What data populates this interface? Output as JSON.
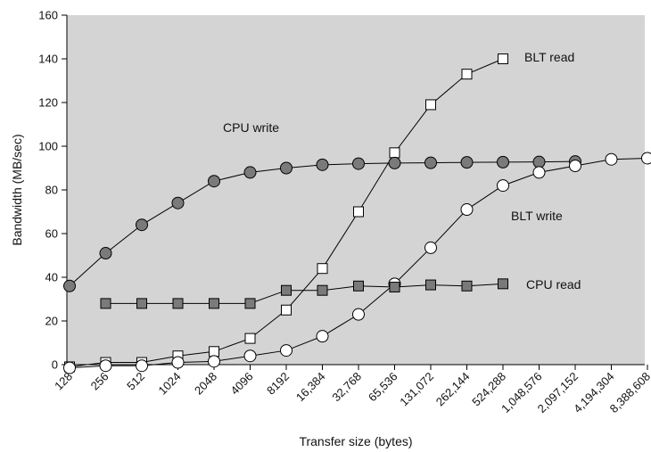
{
  "chart_data": {
    "type": "line",
    "xlabel": "Transfer size (bytes)",
    "ylabel": "Bandwidth (MB/sec)",
    "ylim": [
      0,
      160
    ],
    "yticks": [
      0,
      20,
      40,
      60,
      80,
      100,
      120,
      140,
      160
    ],
    "categories": [
      "128",
      "256",
      "512",
      "1024",
      "2048",
      "4096",
      "8192",
      "16,384",
      "32,768",
      "65,536",
      "131,072",
      "262,144",
      "524,288",
      "1,048,576",
      "2,097,152",
      "4,194,304",
      "8,388,608"
    ],
    "grid": false,
    "background": "#d4d4d4",
    "series": [
      {
        "name": "BLT read",
        "marker": "square-open",
        "color": "#ffffff",
        "values": [
          -1,
          1,
          1,
          4,
          6,
          12,
          25,
          44,
          70,
          97,
          119,
          133,
          140,
          null,
          null,
          null,
          null
        ]
      },
      {
        "name": "CPU write",
        "marker": "circle-filled",
        "color": "#7a7a7a",
        "values": [
          36,
          51,
          64,
          74,
          84,
          88,
          90,
          91.5,
          92,
          92.3,
          92.4,
          92.6,
          92.7,
          92.8,
          93,
          null,
          null
        ]
      },
      {
        "name": "BLT write",
        "marker": "circle-open",
        "color": "#ffffff",
        "values": [
          -1.5,
          -0.5,
          -0.5,
          1,
          1.5,
          4,
          6.5,
          13,
          23,
          37,
          53.5,
          71,
          82,
          88,
          91,
          94,
          94.5
        ]
      },
      {
        "name": "CPU read",
        "marker": "square-filled",
        "color": "#7a7a7a",
        "values": [
          null,
          28,
          28,
          28,
          28,
          28,
          34,
          34,
          36,
          35.5,
          36.5,
          36,
          37,
          null,
          null,
          null,
          null
        ]
      }
    ]
  }
}
